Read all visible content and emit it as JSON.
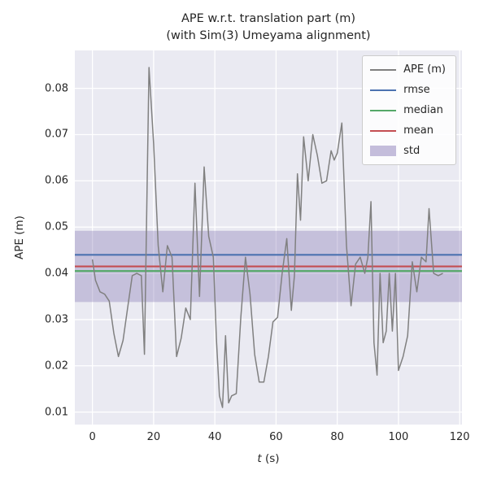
{
  "figure": {
    "title": "APE w.r.t. translation part (m)\n(with Sim(3) Umeyama alignment)"
  },
  "axes": {
    "xlabel_var": "t",
    "xlabel_unit": " (s)",
    "ylabel": "APE (m)"
  },
  "chart_data": {
    "type": "line",
    "title": "APE w.r.t. translation part (m) (with Sim(3) Umeyama alignment)",
    "xlabel": "t (s)",
    "ylabel": "APE (m)",
    "xlim": [
      -5.75,
      120.75
    ],
    "ylim": [
      0.0073,
      0.0882
    ],
    "xticks": [
      0,
      20,
      40,
      60,
      80,
      100,
      120
    ],
    "yticks": [
      0.01,
      0.02,
      0.03,
      0.04,
      0.05,
      0.06,
      0.07,
      0.08
    ],
    "grid": true,
    "legend_position": "upper right",
    "background_color": "#eaeaf2",
    "grid_color": "#ffffff",
    "series": [
      {
        "name": "APE (m)",
        "color": "#808080",
        "x": [
          0,
          1,
          2.5,
          4,
          5.5,
          7,
          8.5,
          10,
          11.5,
          13,
          14.5,
          16,
          17,
          18.5,
          20,
          21.5,
          23,
          24.5,
          26,
          27.5,
          29,
          30.5,
          32,
          33.5,
          35,
          36.5,
          38,
          39.5,
          40.5,
          41.5,
          42.5,
          43.5,
          44.5,
          45.5,
          47,
          48.5,
          50,
          51.5,
          53,
          54.5,
          56,
          57.5,
          59,
          60.5,
          62,
          63.5,
          65,
          66,
          67,
          68,
          69,
          70.5,
          72,
          73.5,
          75,
          76.5,
          78,
          79,
          80,
          81.5,
          83,
          84.5,
          86,
          87.5,
          89,
          90,
          91,
          92,
          93,
          94,
          95,
          96,
          97,
          98,
          99,
          100,
          101.5,
          103,
          104.5,
          106,
          107.5,
          109,
          110,
          111.5,
          113,
          114.5
        ],
        "y": [
          0.043,
          0.0385,
          0.036,
          0.0355,
          0.034,
          0.027,
          0.022,
          0.0255,
          0.0325,
          0.0395,
          0.04,
          0.0395,
          0.0225,
          0.0845,
          0.068,
          0.046,
          0.036,
          0.046,
          0.0435,
          0.022,
          0.026,
          0.0325,
          0.03,
          0.0595,
          0.035,
          0.063,
          0.048,
          0.0435,
          0.026,
          0.0135,
          0.011,
          0.0265,
          0.012,
          0.0135,
          0.014,
          0.0305,
          0.0435,
          0.0355,
          0.0225,
          0.0165,
          0.0165,
          0.022,
          0.0295,
          0.0305,
          0.04,
          0.0475,
          0.032,
          0.0395,
          0.0615,
          0.0515,
          0.0695,
          0.06,
          0.07,
          0.0655,
          0.0595,
          0.06,
          0.0665,
          0.0645,
          0.066,
          0.0725,
          0.046,
          0.033,
          0.042,
          0.0435,
          0.04,
          0.0435,
          0.0555,
          0.025,
          0.018,
          0.04,
          0.025,
          0.0275,
          0.04,
          0.0275,
          0.04,
          0.019,
          0.022,
          0.0265,
          0.0425,
          0.036,
          0.0435,
          0.0425,
          0.054,
          0.04,
          0.0395,
          0.04
        ]
      }
    ],
    "stat_lines": [
      {
        "name": "rmse",
        "value": 0.044,
        "color": "#4c72b0"
      },
      {
        "name": "median",
        "value": 0.0405,
        "color": "#55a868"
      },
      {
        "name": "mean",
        "value": 0.0415,
        "color": "#c44e52"
      }
    ],
    "std_band": {
      "name": "std",
      "low": 0.0338,
      "high": 0.0492,
      "color": "#8172b2",
      "alpha": 0.35
    }
  }
}
